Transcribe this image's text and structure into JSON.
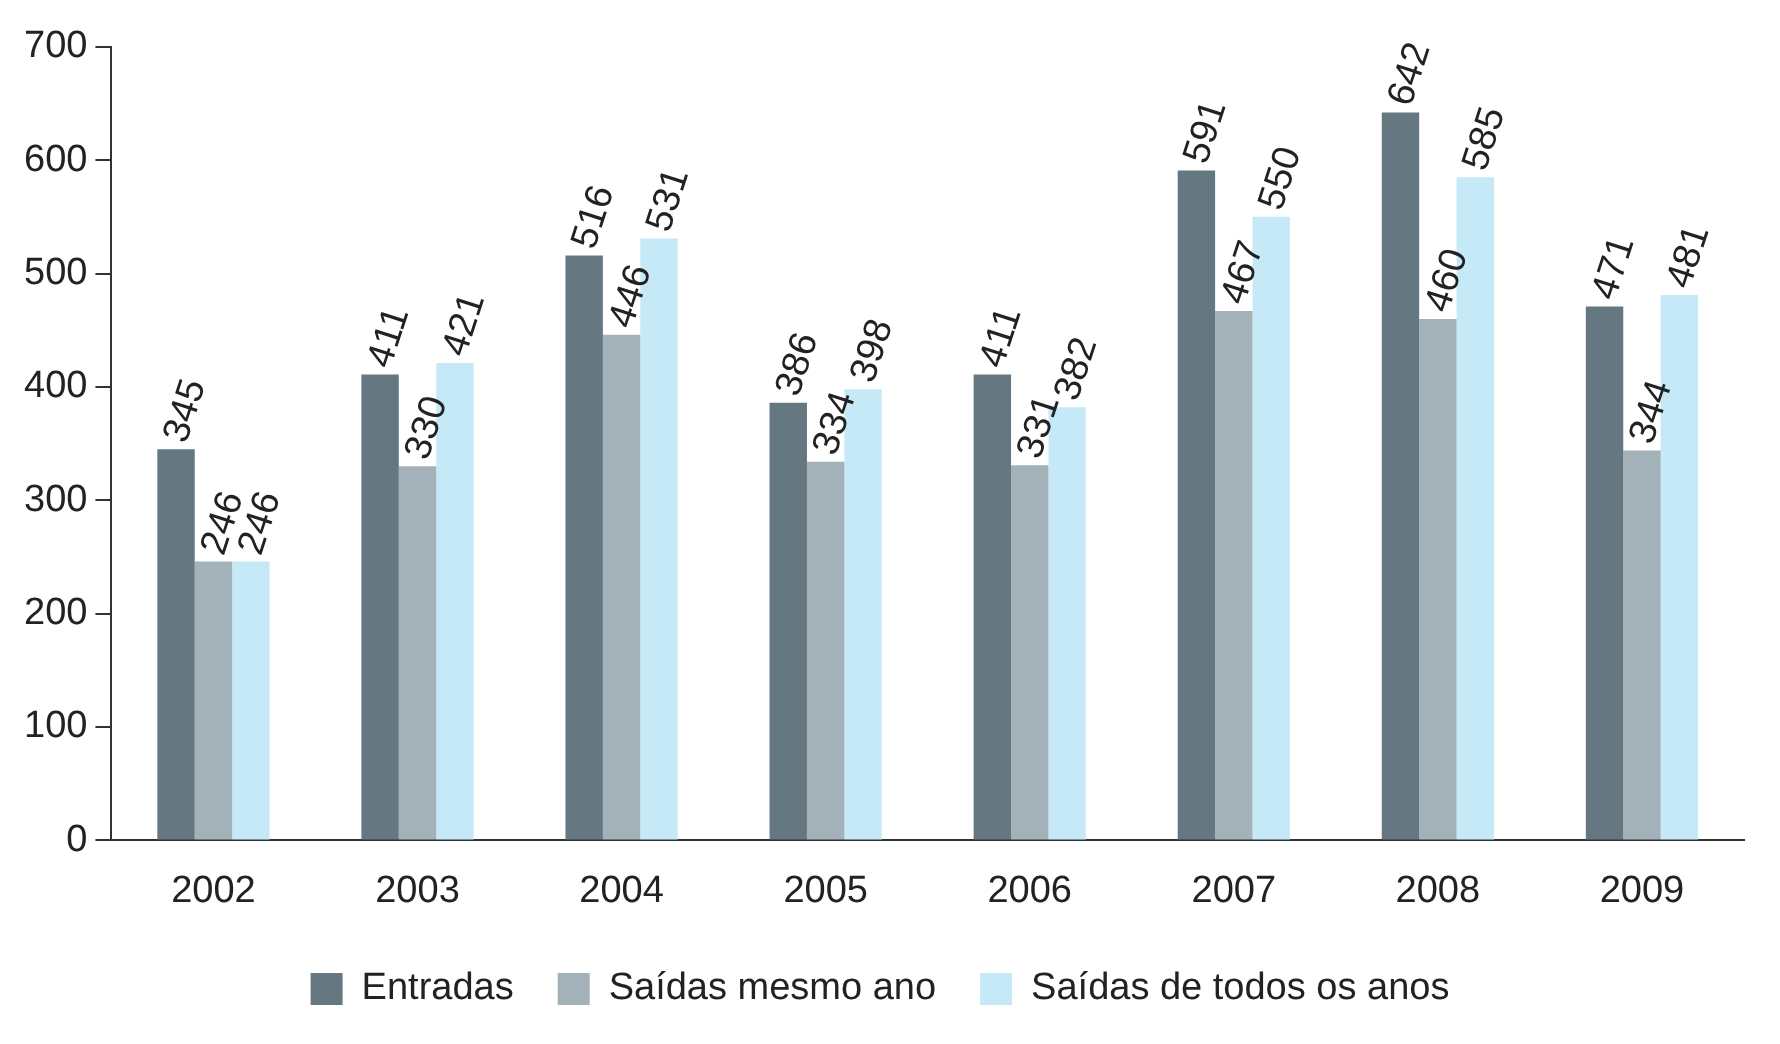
{
  "chart_data": {
    "type": "bar",
    "categories": [
      "2002",
      "2003",
      "2004",
      "2005",
      "2006",
      "2007",
      "2008",
      "2009"
    ],
    "series": [
      {
        "name": "Entradas",
        "color": "#657780",
        "values": [
          345,
          411,
          516,
          386,
          411,
          591,
          642,
          471
        ]
      },
      {
        "name": "Saídas mesmo ano",
        "color": "#a3b1b9",
        "values": [
          246,
          330,
          446,
          334,
          331,
          467,
          460,
          344
        ]
      },
      {
        "name": "Saídas de todos os anos",
        "color": "#c6e9f8",
        "values": [
          246,
          421,
          531,
          398,
          382,
          550,
          585,
          481
        ]
      }
    ],
    "ylim": [
      0,
      700
    ],
    "yticks": [
      0,
      100,
      200,
      300,
      400,
      500,
      600,
      700
    ],
    "grid": false,
    "legend": "bottom",
    "data_labels": true
  }
}
